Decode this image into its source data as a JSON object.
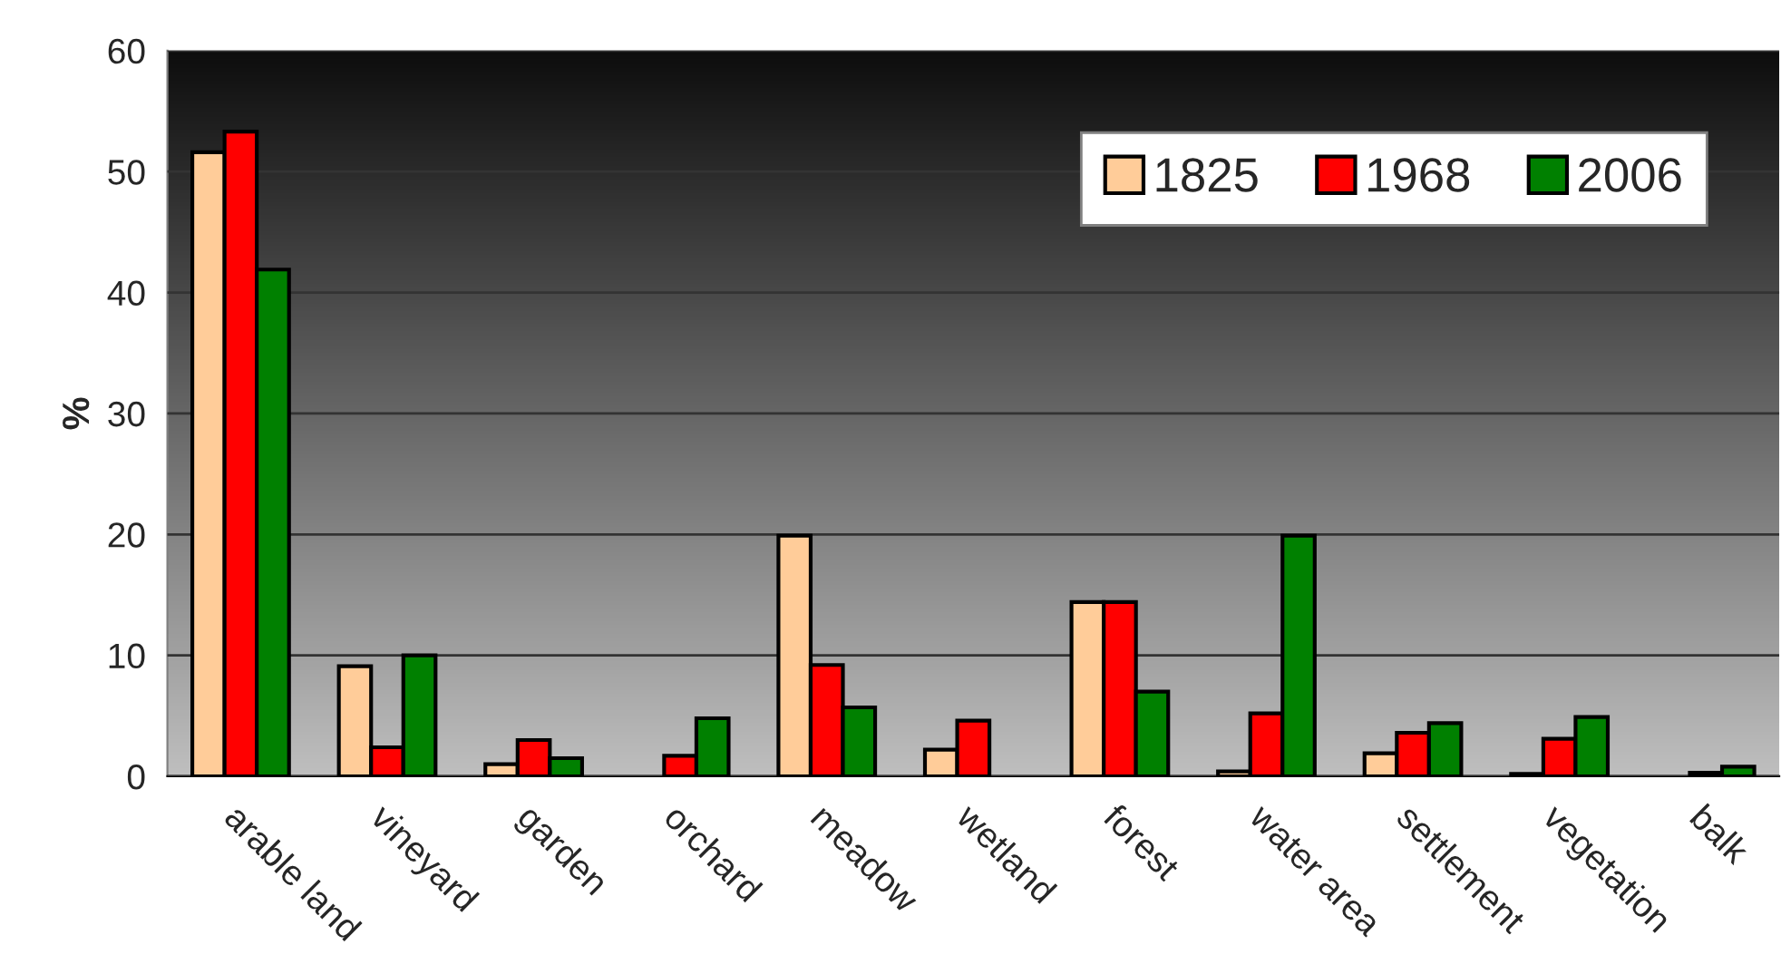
{
  "chart_data": {
    "type": "bar",
    "ylabel": "%",
    "categories": [
      "arable land",
      "vineyard",
      "garden",
      "orchard",
      "meadow",
      "wetland",
      "forest",
      "water area",
      "settlement",
      "vegetation",
      "balk"
    ],
    "series": [
      {
        "name": "1825",
        "color": "#ffcc99",
        "values": [
          51.6,
          9.1,
          1.0,
          null,
          19.9,
          2.2,
          14.4,
          0.4,
          1.9,
          0.2,
          null
        ]
      },
      {
        "name": "1968",
        "color": "#ff0000",
        "values": [
          53.3,
          2.4,
          3.0,
          1.7,
          9.2,
          4.6,
          14.4,
          5.2,
          3.6,
          3.1,
          0.3
        ]
      },
      {
        "name": "2006",
        "color": "#008000",
        "values": [
          41.9,
          10.0,
          1.5,
          4.8,
          5.7,
          null,
          7.0,
          19.9,
          4.4,
          4.9,
          0.8
        ]
      }
    ],
    "ylim": [
      0,
      60
    ],
    "yticks": [
      0,
      10,
      20,
      30,
      40,
      50,
      60
    ],
    "grid": "y",
    "legend": "top right"
  }
}
